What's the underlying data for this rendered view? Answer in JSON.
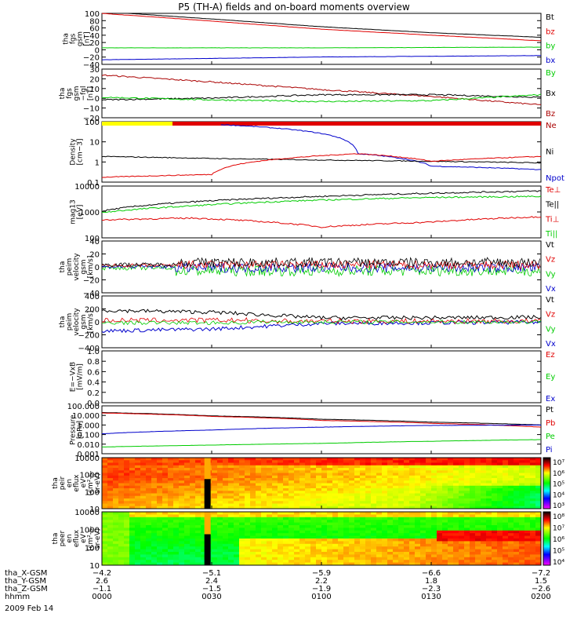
{
  "title": "P5 (TH-A) fields and on-board moments overview",
  "date": "2009 Feb 14",
  "colors": {
    "black": "#000000",
    "red": "#e00000",
    "darkred": "#aa0000",
    "green": "#00cc00",
    "blue": "#0000cc",
    "yellow": "#ffff00"
  },
  "panels": [
    {
      "id": "fgs",
      "ylabel": [
        "tha",
        "fgs",
        "gsm",
        "[nT]"
      ],
      "yticks": [
        "100",
        "80",
        "60",
        "40",
        "20",
        "0",
        "−20",
        "−40"
      ],
      "ylim": [
        -45,
        100
      ],
      "legend": [
        {
          "text": "Bt",
          "color": "#000000"
        },
        {
          "text": "bz",
          "color": "#e00000"
        },
        {
          "text": "by",
          "color": "#00cc00"
        },
        {
          "text": "bx",
          "color": "#0000cc"
        }
      ]
    },
    {
      "id": "fgs-dsl",
      "ylabel": [
        "tha",
        "fgs",
        "gsm",
        "−fgl",
        "[nT]"
      ],
      "yticks": [
        "30",
        "20",
        "10",
        "0",
        "−10",
        "−20"
      ],
      "ylim": [
        -25,
        32
      ],
      "legend": [
        {
          "text": "By",
          "color": "#00cc00"
        },
        {
          "text": "Bx",
          "color": "#000000"
        },
        {
          "text": "Bz",
          "color": "#aa0000"
        }
      ]
    },
    {
      "id": "density",
      "ylabel": [
        "Density",
        "[cm−3]"
      ],
      "yticks": [
        "100",
        "10",
        "1",
        "0.1"
      ],
      "log": true,
      "ylim": [
        0.05,
        300
      ],
      "legend": [
        {
          "text": "Ne",
          "color": "#aa0000"
        },
        {
          "text": "Ni",
          "color": "#000000"
        },
        {
          "text": "Npot",
          "color": "#0000cc"
        }
      ]
    },
    {
      "id": "temperature",
      "ylabel": [
        "mag13",
        "[eV]"
      ],
      "yticks": [
        "10000",
        "1000",
        "100"
      ],
      "log": true,
      "ylim": [
        20,
        15000
      ],
      "legend": [
        {
          "text": "Te⊥",
          "color": "#e00000"
        },
        {
          "text": "Te||",
          "color": "#000000"
        },
        {
          "text": "Ti⊥",
          "color": "#e00000"
        },
        {
          "text": "Ti||",
          "color": "#00cc00"
        }
      ]
    },
    {
      "id": "peim-velocity",
      "ylabel": [
        "tha",
        "peim",
        "velocity",
        "gsm",
        "[km/s]"
      ],
      "yticks": [
        "40",
        "20",
        "0",
        "−20",
        "−40"
      ],
      "ylim": [
        -45,
        42
      ],
      "legend": [
        {
          "text": "Vt",
          "color": "#000000"
        },
        {
          "text": "Vz",
          "color": "#e00000"
        },
        {
          "text": "Vy",
          "color": "#00cc00"
        },
        {
          "text": "Vx",
          "color": "#0000cc"
        }
      ]
    },
    {
      "id": "peim-velocity-2",
      "ylabel": [
        "tha",
        "peim",
        "velocity",
        "gsm",
        "[km/s]"
      ],
      "yticks": [
        "400",
        "200",
        "0",
        "−200",
        "−400"
      ],
      "ylim": [
        -420,
        410
      ],
      "legend": [
        {
          "text": "Vt",
          "color": "#000000"
        },
        {
          "text": "Vz",
          "color": "#e00000"
        },
        {
          "text": "Vy",
          "color": "#00cc00"
        },
        {
          "text": "Vx",
          "color": "#0000cc"
        }
      ]
    },
    {
      "id": "efield",
      "ylabel": [
        "E=−VxB",
        "[mV/m]"
      ],
      "yticks": [
        "1.0",
        "0.8",
        "0.6",
        "0.4",
        "0.2",
        "0.0"
      ],
      "ylim": [
        0,
        1
      ],
      "legend": [
        {
          "text": "Ez",
          "color": "#e00000"
        },
        {
          "text": "Ey",
          "color": "#00cc00"
        },
        {
          "text": "Ex",
          "color": "#0000cc"
        }
      ]
    },
    {
      "id": "pressure",
      "ylabel": [
        "Pressure",
        "[nPa]"
      ],
      "yticks": [
        "100.000",
        "10.000",
        "1.000",
        "0.100",
        "0.010",
        "0.001"
      ],
      "log": true,
      "ylim": [
        0.001,
        100
      ],
      "legend": [
        {
          "text": "Pt",
          "color": "#000000"
        },
        {
          "text": "Pb",
          "color": "#e00000"
        },
        {
          "text": "Pe",
          "color": "#00cc00"
        },
        {
          "text": "Pi",
          "color": "#0000cc"
        }
      ]
    },
    {
      "id": "peir",
      "ylabel": [
        "tha",
        "peir",
        "en",
        "eflux",
        "eV",
        "(cm²-s-",
        "sr-eV)"
      ],
      "yticks": [
        "10000",
        "1000",
        "100",
        "10"
      ],
      "spectrogram": true,
      "colorbar": [
        "10⁷",
        "10⁶",
        "10⁵",
        "10⁴",
        "10³"
      ]
    },
    {
      "id": "peer",
      "ylabel": [
        "tha",
        "peer",
        "en",
        "eflux",
        "eV",
        "(cm²-s-",
        "sr-eV)"
      ],
      "yticks": [
        "10000",
        "1000",
        "100",
        "10"
      ],
      "spectrogram": true,
      "colorbar": [
        "10⁸",
        "10⁷",
        "10⁶",
        "10⁵",
        "10⁴"
      ]
    }
  ],
  "footer": {
    "rows": [
      {
        "label": "tha_X-GSM",
        "values": [
          "−4.2",
          "−5.1",
          "−5.9",
          "−6.6",
          "−7.2"
        ]
      },
      {
        "label": "tha_Y-GSM",
        "values": [
          "2.6",
          "2.4",
          "2.2",
          "1.8",
          "1.5"
        ]
      },
      {
        "label": "tha_Z-GSM",
        "values": [
          "−1.1",
          "−1.5",
          "−1.9",
          "−2.3",
          "−2.6"
        ]
      },
      {
        "label": "hhmm",
        "values": [
          "0000",
          "0030",
          "0100",
          "0130",
          "0200"
        ]
      }
    ]
  },
  "chart_data": {
    "type": "line",
    "title": "P5 (TH-A) fields and on-board moments overview",
    "x_ticks": [
      "0000",
      "0030",
      "0100",
      "0130",
      "0200"
    ],
    "series": [
      {
        "panel": "fgs",
        "name": "Bt",
        "x": [
          0,
          30,
          60,
          90,
          120
        ],
        "y": [
          105,
          84,
          62,
          45,
          32
        ]
      },
      {
        "panel": "fgs",
        "name": "bz",
        "x": [
          0,
          30,
          60,
          90,
          120
        ],
        "y": [
          100,
          78,
          55,
          38,
          22
        ]
      },
      {
        "panel": "fgs",
        "name": "by",
        "x": [
          0,
          30,
          60,
          90,
          120
        ],
        "y": [
          2,
          2,
          2,
          3,
          4
        ]
      },
      {
        "panel": "fgs",
        "name": "bx",
        "x": [
          0,
          30,
          60,
          90,
          120
        ],
        "y": [
          -32,
          -28,
          -24,
          -22,
          -20
        ]
      },
      {
        "panel": "fgs-dsl",
        "name": "Bz",
        "x": [
          0,
          30,
          60,
          90,
          120
        ],
        "y": [
          25,
          17,
          8,
          0,
          -10
        ]
      },
      {
        "panel": "fgs-dsl",
        "name": "Bx",
        "x": [
          0,
          30,
          60,
          90,
          120
        ],
        "y": [
          -4,
          -2,
          2,
          2,
          -1
        ]
      },
      {
        "panel": "fgs-dsl",
        "name": "By",
        "x": [
          0,
          30,
          60,
          90,
          120
        ],
        "y": [
          -1,
          -4,
          -6,
          -5,
          2
        ]
      },
      {
        "panel": "density",
        "name": "Npot",
        "x": [
          0,
          32,
          55,
          70,
          90,
          120
        ],
        "y": [
          null,
          200,
          80,
          3,
          0.5,
          0.3
        ]
      },
      {
        "panel": "density",
        "name": "Ni",
        "x": [
          0,
          30,
          60,
          90,
          120
        ],
        "y": [
          2,
          1.5,
          1.2,
          1,
          0.8
        ]
      },
      {
        "panel": "density",
        "name": "Ne",
        "x": [
          0,
          30,
          50,
          70,
          90,
          120
        ],
        "y": [
          0.1,
          0.15,
          1.5,
          3,
          1,
          2
        ]
      },
      {
        "panel": "temperature",
        "name": "Te||",
        "x": [
          0,
          25,
          60,
          90,
          120
        ],
        "y": [
          600,
          2000,
          4000,
          6000,
          8000
        ]
      },
      {
        "panel": "temperature",
        "name": "Ti||",
        "x": [
          0,
          25,
          60,
          90,
          120
        ],
        "y": [
          500,
          1200,
          2500,
          3500,
          4000
        ]
      },
      {
        "panel": "temperature",
        "name": "Te⊥",
        "x": [
          0,
          25,
          60,
          90,
          120
        ],
        "y": [
          200,
          250,
          80,
          150,
          300
        ]
      },
      {
        "panel": "peim-velocity-2",
        "name": "Vx",
        "x": [
          0,
          30,
          60,
          90,
          120
        ],
        "y": [
          -150,
          -120,
          -30,
          -20,
          -10
        ]
      },
      {
        "panel": "peim-velocity-2",
        "name": "Vt",
        "x": [
          0,
          30,
          60,
          90,
          120
        ],
        "y": [
          180,
          150,
          60,
          60,
          70
        ]
      },
      {
        "panel": "pressure",
        "name": "Pt",
        "x": [
          0,
          30,
          60,
          90,
          120
        ],
        "y": [
          20,
          9,
          4,
          2,
          1
        ]
      },
      {
        "panel": "pressure",
        "name": "Pb",
        "x": [
          0,
          30,
          60,
          90,
          120
        ],
        "y": [
          18,
          8,
          3,
          1.5,
          0.6
        ]
      },
      {
        "panel": "pressure",
        "name": "Pi",
        "x": [
          0,
          30,
          60,
          90,
          120
        ],
        "y": [
          0.12,
          0.3,
          0.6,
          0.9,
          1.0
        ]
      },
      {
        "panel": "pressure",
        "name": "Pe",
        "x": [
          0,
          30,
          60,
          90,
          120
        ],
        "y": [
          0.005,
          0.008,
          0.012,
          0.02,
          0.03
        ]
      }
    ]
  }
}
